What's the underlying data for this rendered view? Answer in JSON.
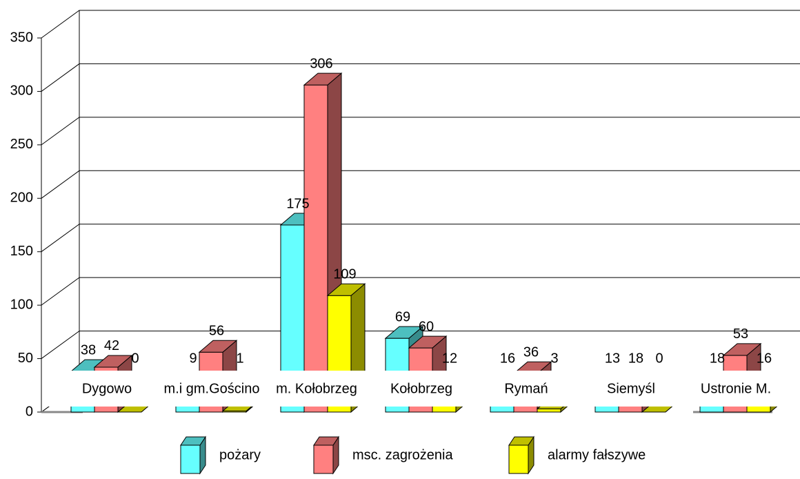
{
  "chart_data": {
    "type": "bar3d",
    "categories": [
      "Dygowo",
      "m.i gm.Gościno",
      "m. Kołobrzeg",
      "Kołobrzeg",
      "Rymań",
      "Siemyśl",
      "Ustronie M."
    ],
    "series": [
      {
        "name": "pożary",
        "color": "#66ffff",
        "values": [
          38,
          9,
          175,
          69,
          16,
          13,
          18
        ]
      },
      {
        "name": "msc. zagrożenia",
        "color": "#ff8080",
        "values": [
          42,
          56,
          306,
          60,
          36,
          18,
          53
        ]
      },
      {
        "name": "alarmy fałszywe",
        "color": "#ffff00",
        "values": [
          0,
          1,
          109,
          12,
          3,
          0,
          16
        ]
      }
    ],
    "ylim": [
      0,
      350
    ],
    "yticks": [
      0,
      50,
      100,
      150,
      200,
      250,
      300,
      350
    ],
    "grid": true,
    "legend": "bottom"
  }
}
